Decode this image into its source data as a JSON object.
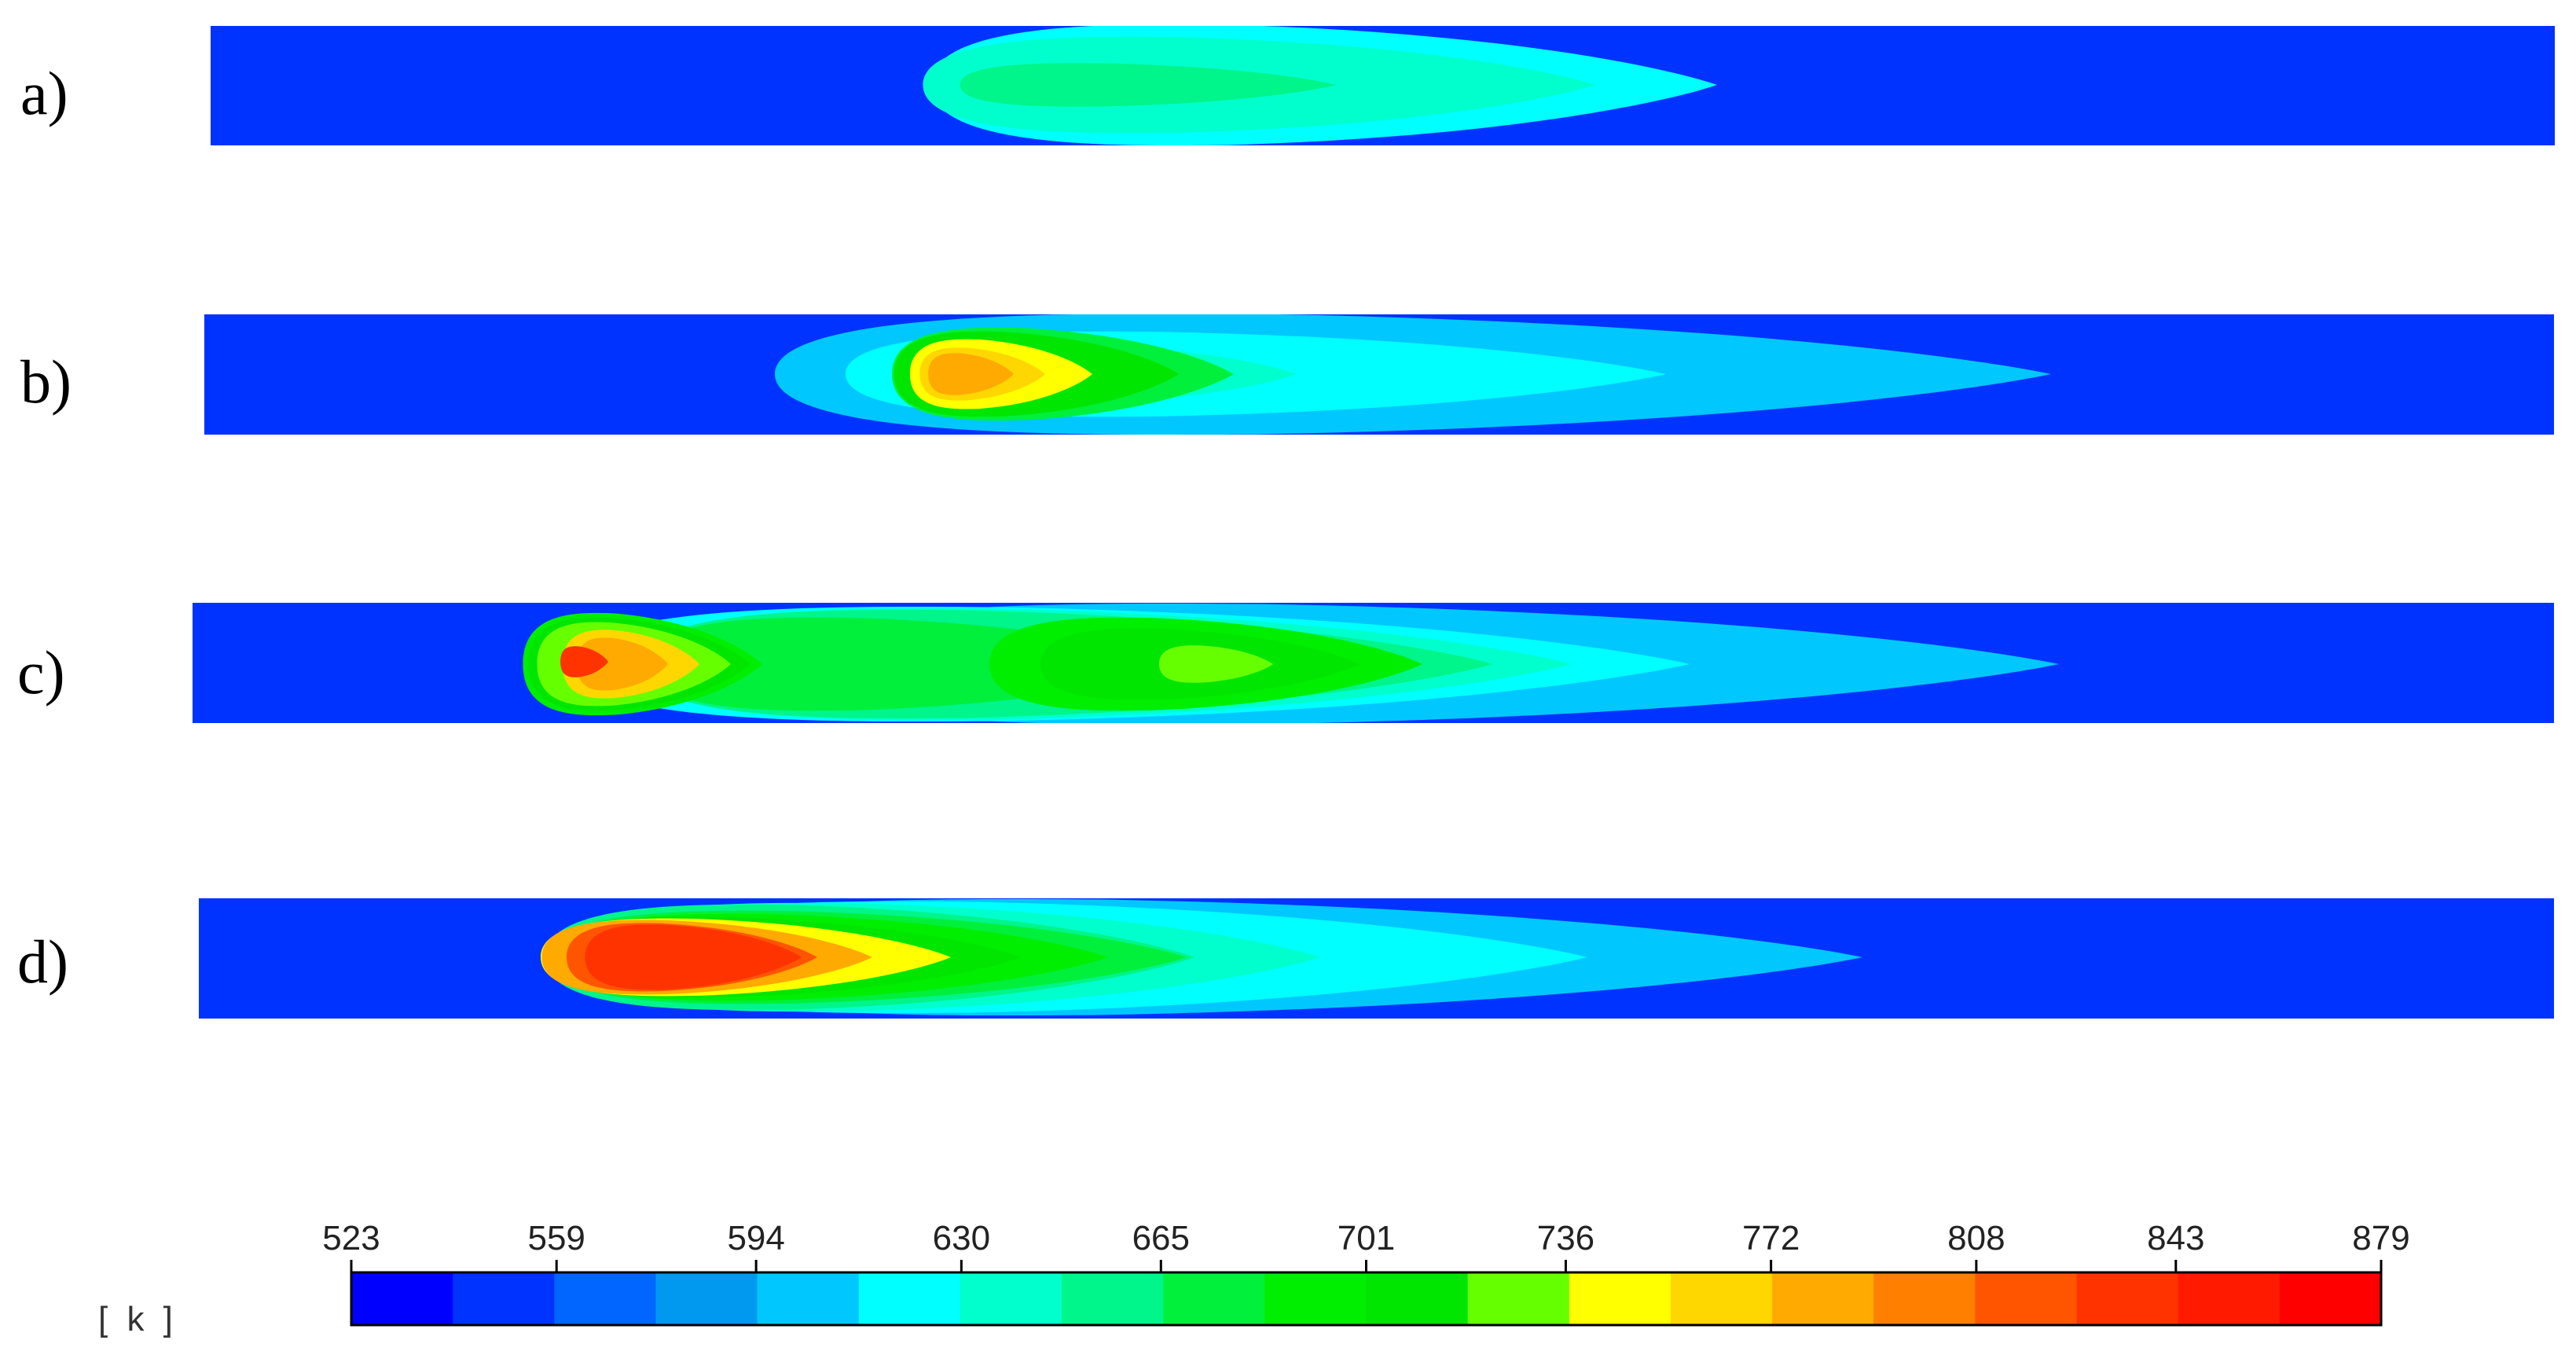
{
  "chart_data": {
    "type": "heatmap",
    "title": "",
    "panels": [
      {
        "label": "a)",
        "peak_level": 7
      },
      {
        "label": "b)",
        "peak_level": 12
      },
      {
        "label": "c)",
        "peak_level": 15,
        "secondary_peak_level": 11
      },
      {
        "label": "d)",
        "peak_level": 14
      }
    ],
    "colorbar": {
      "unit": "[ k ]",
      "tick_labels": [
        "523",
        "559",
        "594",
        "630",
        "665",
        "701",
        "736",
        "772",
        "808",
        "843",
        "879"
      ],
      "ticks": [
        523,
        559,
        594,
        630,
        665,
        701,
        736,
        772,
        808,
        843,
        879
      ],
      "range": [
        523,
        879
      ],
      "levels": 20
    },
    "colors": {
      "level_palette": [
        "#0000ff",
        "#0033ff",
        "#0066ff",
        "#0099f0",
        "#00c8ff",
        "#00ffff",
        "#00ffcc",
        "#00f58a",
        "#00f03c",
        "#00ee00",
        "#00e600",
        "#66ff00",
        "#ffff00",
        "#ffd700",
        "#ffaa00",
        "#ff7f00",
        "#ff5500",
        "#ff3300",
        "#ff1a00",
        "#ff0000"
      ],
      "background_field": "#0033ff"
    }
  }
}
